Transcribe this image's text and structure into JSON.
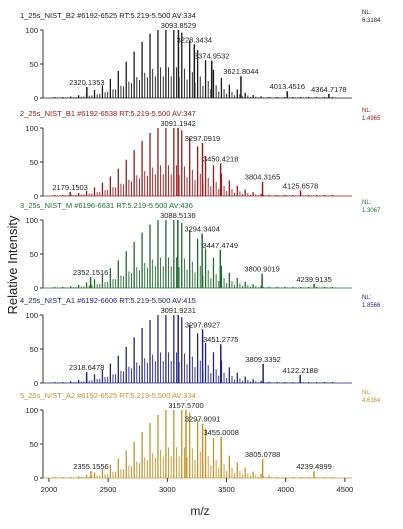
{
  "figure": {
    "ylabel": "Relative Intensity",
    "xlabel": "m/z",
    "nl_label": "NL:"
  },
  "chart_data": [
    {
      "type": "line",
      "title": "1_25s_NIST_B2 #6192-6525 RT:5.219-5.500 AV:334",
      "nl_value": "6.3184",
      "color": "#1a1a1a",
      "xlim": [
        1950,
        4560
      ],
      "ylim": [
        0,
        100
      ],
      "yticks": [
        0,
        50,
        100
      ],
      "apex": 3093.8529,
      "spread": 290,
      "skew": 0.0012,
      "spacing": 67,
      "start": 2050,
      "end": 4450,
      "baseline": 1.5,
      "peak_labels": [
        {
          "mz": 2320.1353,
          "label": "2320.1353",
          "y": 16
        },
        {
          "mz": 3093.8529,
          "label": "3093.8529",
          "y": 100
        },
        {
          "mz": 3228.3434,
          "label": "3228.3434",
          "y": 79
        },
        {
          "mz": 3374.9532,
          "label": "3374.9532",
          "y": 55
        },
        {
          "mz": 3621.8044,
          "label": "3621.8044",
          "y": 32
        },
        {
          "mz": 4013.4516,
          "label": "4013.4516",
          "y": 10
        },
        {
          "mz": 4364.7178,
          "label": "4364.7178",
          "y": 6
        }
      ]
    },
    {
      "type": "line",
      "title": "2_25s_NIST_B1 #6192-6538 RT:5.219-5.500 AV:347",
      "nl_value": "1.4965",
      "color": "#a01818",
      "xlim": [
        1950,
        4560
      ],
      "ylim": [
        0,
        100
      ],
      "yticks": [
        0,
        50,
        100
      ],
      "apex": 3091.1942,
      "spread": 300,
      "skew": 0.001,
      "spacing": 67,
      "start": 2050,
      "end": 4450,
      "baseline": 1.5,
      "peak_labels": [
        {
          "mz": 2179.1503,
          "label": "2179.1503",
          "y": 6
        },
        {
          "mz": 3091.1942,
          "label": "3091.1942",
          "y": 100
        },
        {
          "mz": 3297.0919,
          "label": "3297.0919",
          "y": 78
        },
        {
          "mz": 3450.4218,
          "label": "3450.4218",
          "y": 48
        },
        {
          "mz": 3804.3165,
          "label": "3804.3165",
          "y": 21
        },
        {
          "mz": 4125.6578,
          "label": "4125.6578",
          "y": 8
        }
      ]
    },
    {
      "type": "line",
      "title": "3_25s_NIST_M #6196-6631 RT:5.219-5.500 AV:436",
      "nl_value": "1.3067",
      "color": "#1f6b30",
      "xlim": [
        1950,
        4560
      ],
      "ylim": [
        0,
        100
      ],
      "yticks": [
        0,
        50,
        100
      ],
      "apex": 3088.5136,
      "spread": 300,
      "skew": 0.001,
      "spacing": 67,
      "start": 2050,
      "end": 4450,
      "baseline": 1.5,
      "peak_labels": [
        {
          "mz": 2352.1516,
          "label": "2352.1516",
          "y": 16
        },
        {
          "mz": 3088.5136,
          "label": "3088.5136",
          "y": 100
        },
        {
          "mz": 3294.3404,
          "label": "3294.3404",
          "y": 80
        },
        {
          "mz": 3447.4749,
          "label": "3447.4749",
          "y": 56
        },
        {
          "mz": 3800.9019,
          "label": "3800.9019",
          "y": 21
        },
        {
          "mz": 4239.9135,
          "label": "4239.9135",
          "y": 6
        }
      ]
    },
    {
      "type": "line",
      "title": "4_25s_NIST_A1 #6192-6606 RT:5.219-5.500 AV:415",
      "nl_value": "1.8566",
      "color": "#22228a",
      "xlim": [
        1950,
        4560
      ],
      "ylim": [
        0,
        100
      ],
      "yticks": [
        0,
        50,
        100
      ],
      "apex": 3091.9231,
      "spread": 300,
      "skew": 0.001,
      "spacing": 67,
      "start": 2050,
      "end": 4450,
      "baseline": 1.5,
      "peak_labels": [
        {
          "mz": 2318.6478,
          "label": "2318.6478",
          "y": 16
        },
        {
          "mz": 3091.9231,
          "label": "3091.9231",
          "y": 100
        },
        {
          "mz": 3297.8927,
          "label": "3297.8927",
          "y": 79
        },
        {
          "mz": 3451.2775,
          "label": "3451.2775",
          "y": 57
        },
        {
          "mz": 3809.3392,
          "label": "3809.3392",
          "y": 28
        },
        {
          "mz": 4122.2188,
          "label": "4122.2188",
          "y": 12
        }
      ]
    },
    {
      "type": "line",
      "title": "5_25s_NIST_A2 #6192-6525 RT:5.219-5.500 AV:334",
      "nl_value": "4.6364",
      "color": "#c8922a",
      "xlim": [
        1950,
        4560
      ],
      "ylim": [
        0,
        100
      ],
      "yticks": [
        0,
        50,
        100
      ],
      "apex": 3157.57,
      "spread": 300,
      "skew": 0.001,
      "spacing": 67,
      "start": 2050,
      "end": 4450,
      "baseline": 1.5,
      "peak_labels": [
        {
          "mz": 2355.1556,
          "label": "2355.1556",
          "y": 10
        },
        {
          "mz": 3157.57,
          "label": "3157.5700",
          "y": 100
        },
        {
          "mz": 3297.9091,
          "label": "3297.9091",
          "y": 80
        },
        {
          "mz": 3455.0008,
          "label": "3455.0008",
          "y": 60
        },
        {
          "mz": 3805.0788,
          "label": "3805.0788",
          "y": 28
        },
        {
          "mz": 4239.4999,
          "label": "4239.4999",
          "y": 10
        }
      ]
    }
  ],
  "xaxis": {
    "xlim": [
      1950,
      4560
    ],
    "ticks": [
      2000,
      2500,
      3000,
      3500,
      4000,
      4500
    ]
  }
}
